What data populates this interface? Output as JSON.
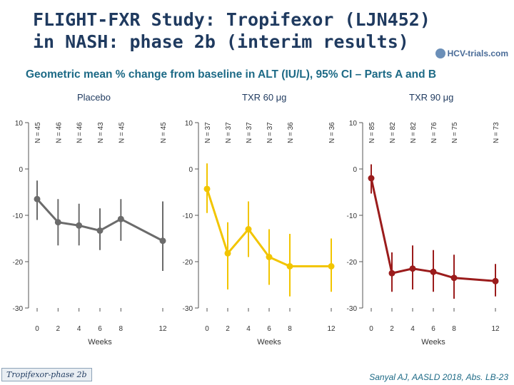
{
  "header": {
    "title_line1": "FLIGHT-FXR Study: Tropifexor (LJN452)",
    "title_line2": "in NASH: phase 2b (interim results)",
    "logo": "HCV-trials.com"
  },
  "footer": {
    "badge": "Tropifexor-phase 2b",
    "citation": "Sanyal AJ, AASLD 2018, Abs. LB-23"
  },
  "chart_data": {
    "type": "line",
    "title": "Geometric mean % change from baseline in ALT (IU/L), 95% CI – Parts A and B",
    "xlabel": "Weeks",
    "ylabel": "",
    "ylim": [
      -30,
      10
    ],
    "yticks": [
      10,
      0,
      -10,
      -20,
      -30
    ],
    "xticks": [
      0,
      2,
      4,
      6,
      8,
      12
    ],
    "panels": [
      {
        "name": "Placebo",
        "color": "#6b6b6b",
        "n_labels": [
          "N = 45",
          "N = 46",
          "N = 46",
          "N = 43",
          "N = 45",
          "N = 45"
        ],
        "points": [
          {
            "week": 0,
            "value": -6.5,
            "ci": [
              -2.5,
              -11
            ]
          },
          {
            "week": 2,
            "value": -11.5,
            "ci": [
              -6.5,
              -16.5
            ]
          },
          {
            "week": 4,
            "value": -12.2,
            "ci": [
              -7.5,
              -16.5
            ]
          },
          {
            "week": 6,
            "value": -13.3,
            "ci": [
              -8.5,
              -17.5
            ]
          },
          {
            "week": 8,
            "value": -10.8,
            "ci": [
              -6.5,
              -15.5
            ]
          },
          {
            "week": 12,
            "value": -15.5,
            "ci": [
              -7,
              -22
            ]
          }
        ]
      },
      {
        "name": "TXR 60 μg",
        "color": "#f2c500",
        "n_labels": [
          "N = 37",
          "N = 37",
          "N = 37",
          "N = 37",
          "N = 36",
          "N = 36"
        ],
        "points": [
          {
            "week": 0,
            "value": -4.3,
            "ci": [
              1.2,
              -9.5
            ]
          },
          {
            "week": 2,
            "value": -18.2,
            "ci": [
              -11.5,
              -26
            ]
          },
          {
            "week": 4,
            "value": -13,
            "ci": [
              -7,
              -19
            ]
          },
          {
            "week": 6,
            "value": -19,
            "ci": [
              -13,
              -25
            ]
          },
          {
            "week": 8,
            "value": -21,
            "ci": [
              -14,
              -27.5
            ]
          },
          {
            "week": 12,
            "value": -21,
            "ci": [
              -15,
              -26.5
            ]
          }
        ]
      },
      {
        "name": "TXR 90 μg",
        "color": "#9b1c1c",
        "n_labels": [
          "N = 85",
          "N = 82",
          "N = 82",
          "N = 76",
          "N = 75",
          "N = 73"
        ],
        "points": [
          {
            "week": 0,
            "value": -2,
            "ci": [
              1,
              -5.3
            ]
          },
          {
            "week": 2,
            "value": -22.5,
            "ci": [
              -18,
              -26.5
            ]
          },
          {
            "week": 4,
            "value": -21.5,
            "ci": [
              -16.5,
              -26
            ]
          },
          {
            "week": 6,
            "value": -22.2,
            "ci": [
              -17.5,
              -26.5
            ]
          },
          {
            "week": 8,
            "value": -23.5,
            "ci": [
              -18.5,
              -28
            ]
          },
          {
            "week": 12,
            "value": -24.2,
            "ci": [
              -20.5,
              -27.5
            ]
          }
        ]
      }
    ]
  }
}
